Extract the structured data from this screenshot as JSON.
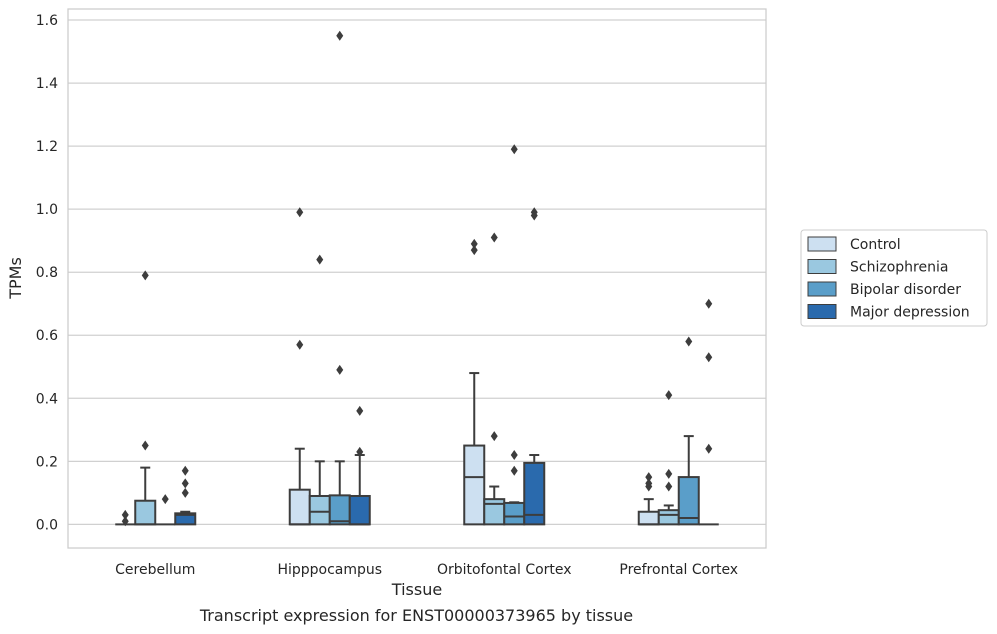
{
  "caption": "Transcript expression for ENST00000373965 by tissue",
  "chart_data": {
    "type": "boxplot",
    "xlabel": "Tissue",
    "ylabel": "TPMs",
    "categories": [
      "Cerebellum",
      "Hipppocampus",
      "Orbitofontal Cortex",
      "Prefrontal Cortex"
    ],
    "ylim": [
      -0.075,
      1.635
    ],
    "yticks": [
      0.0,
      0.2,
      0.4,
      0.6,
      0.8,
      1.0,
      1.2,
      1.4,
      1.6
    ],
    "ytick_labels": [
      "0.0",
      "0.2",
      "0.4",
      "0.6",
      "0.8",
      "1.0",
      "1.2",
      "1.4",
      "1.6"
    ],
    "grid": true,
    "legend_position": "right",
    "series": [
      {
        "name": "Control",
        "color": "#cde0f1",
        "boxes": [
          {
            "q1": 0.0,
            "median": 0.0,
            "q3": 0.0,
            "whislo": 0.0,
            "whishi": 0.0,
            "fliers": [
              0.01,
              0.03
            ]
          },
          {
            "q1": 0.0,
            "median": 0.0,
            "q3": 0.11,
            "whislo": 0.0,
            "whishi": 0.24,
            "fliers": [
              0.57,
              0.99
            ]
          },
          {
            "q1": 0.0,
            "median": 0.15,
            "q3": 0.25,
            "whislo": 0.0,
            "whishi": 0.48,
            "fliers": [
              0.87,
              0.89
            ]
          },
          {
            "q1": 0.0,
            "median": 0.0,
            "q3": 0.04,
            "whislo": 0.0,
            "whishi": 0.08,
            "fliers": [
              0.12,
              0.13,
              0.15
            ]
          }
        ]
      },
      {
        "name": "Schizophrenia",
        "color": "#9ac8e0",
        "boxes": [
          {
            "q1": 0.0,
            "median": 0.0,
            "q3": 0.075,
            "whislo": 0.0,
            "whishi": 0.18,
            "fliers": [
              0.25,
              0.79
            ]
          },
          {
            "q1": 0.0,
            "median": 0.04,
            "q3": 0.09,
            "whislo": 0.0,
            "whishi": 0.2,
            "fliers": [
              0.84
            ]
          },
          {
            "q1": 0.0,
            "median": 0.065,
            "q3": 0.08,
            "whislo": 0.0,
            "whishi": 0.12,
            "fliers": [
              0.28,
              0.91
            ]
          },
          {
            "q1": 0.0,
            "median": 0.03,
            "q3": 0.045,
            "whislo": 0.0,
            "whishi": 0.06,
            "fliers": [
              0.12,
              0.16,
              0.41
            ]
          }
        ]
      },
      {
        "name": "Bipolar disorder",
        "color": "#5a9ec9",
        "boxes": [
          {
            "q1": 0.0,
            "median": 0.0,
            "q3": 0.0,
            "whislo": 0.0,
            "whishi": 0.0,
            "fliers": [
              0.08
            ]
          },
          {
            "q1": 0.0,
            "median": 0.01,
            "q3": 0.092,
            "whislo": 0.0,
            "whishi": 0.2,
            "fliers": [
              1.55,
              0.49
            ]
          },
          {
            "q1": 0.0,
            "median": 0.025,
            "q3": 0.068,
            "whislo": 0.0,
            "whishi": 0.07,
            "fliers": [
              0.17,
              0.22,
              1.19
            ]
          },
          {
            "q1": 0.0,
            "median": 0.02,
            "q3": 0.15,
            "whislo": 0.0,
            "whishi": 0.28,
            "fliers": [
              0.58
            ]
          }
        ]
      },
      {
        "name": "Major depression",
        "color": "#2a6aad",
        "boxes": [
          {
            "q1": 0.0,
            "median": 0.03,
            "q3": 0.035,
            "whislo": 0.0,
            "whishi": 0.04,
            "fliers": [
              0.1,
              0.13,
              0.17
            ]
          },
          {
            "q1": 0.0,
            "median": 0.0,
            "q3": 0.09,
            "whislo": 0.0,
            "whishi": 0.22,
            "fliers": [
              0.23,
              0.36
            ]
          },
          {
            "q1": 0.0,
            "median": 0.03,
            "q3": 0.195,
            "whislo": 0.0,
            "whishi": 0.22,
            "fliers": [
              0.98,
              0.99
            ]
          },
          {
            "q1": 0.0,
            "median": 0.0,
            "q3": 0.0,
            "whislo": 0.0,
            "whishi": 0.0,
            "fliers": [
              0.24,
              0.53,
              0.7
            ]
          }
        ]
      }
    ]
  }
}
